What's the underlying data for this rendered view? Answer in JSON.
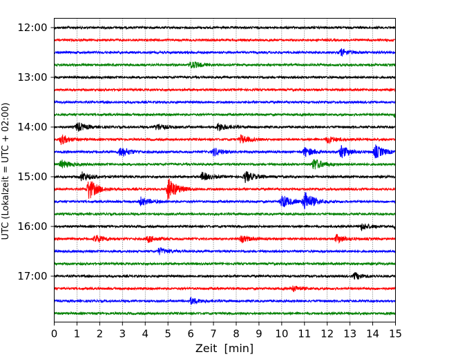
{
  "chart_data": {
    "type": "line",
    "subtype": "helicorder",
    "title": "",
    "xlabel": "Zeit  [min]",
    "ylabel": "UTC (Lokalzeit = UTC + 02:00)",
    "xlim": [
      0,
      15
    ],
    "x_ticks": [
      0,
      1,
      2,
      3,
      4,
      5,
      6,
      7,
      8,
      9,
      10,
      11,
      12,
      13,
      14,
      15
    ],
    "y_tick_labels": [
      "12:00",
      "13:00",
      "14:00",
      "15:00",
      "16:00",
      "17:00"
    ],
    "grid": "vertical dotted at each minute",
    "legend": "none",
    "trace_interval_min": 15,
    "colors": [
      "#000000",
      "#ff0000",
      "#0000ff",
      "#008000"
    ],
    "traces": [
      {
        "start": "12:00",
        "color": "#000000",
        "events": []
      },
      {
        "start": "12:15",
        "color": "#ff0000",
        "events": []
      },
      {
        "start": "12:30",
        "color": "#0000ff",
        "events": [
          {
            "t": 12.6,
            "amp": 5
          }
        ]
      },
      {
        "start": "12:45",
        "color": "#008000",
        "events": [
          {
            "t": 6.0,
            "amp": 6
          }
        ]
      },
      {
        "start": "13:00",
        "color": "#000000",
        "events": []
      },
      {
        "start": "13:15",
        "color": "#ff0000",
        "events": []
      },
      {
        "start": "13:30",
        "color": "#0000ff",
        "events": []
      },
      {
        "start": "13:45",
        "color": "#008000",
        "events": [
          {
            "t": 15.0,
            "amp": 6
          }
        ]
      },
      {
        "start": "14:00",
        "color": "#000000",
        "events": [
          {
            "t": 1.0,
            "amp": 7
          },
          {
            "t": 4.5,
            "amp": 5
          },
          {
            "t": 7.2,
            "amp": 6
          }
        ]
      },
      {
        "start": "14:15",
        "color": "#ff0000",
        "events": [
          {
            "t": 0.3,
            "amp": 7
          },
          {
            "t": 8.2,
            "amp": 6
          },
          {
            "t": 12.0,
            "amp": 5
          }
        ]
      },
      {
        "start": "14:30",
        "color": "#0000ff",
        "events": [
          {
            "t": 2.9,
            "amp": 8
          },
          {
            "t": 7.0,
            "amp": 6
          },
          {
            "t": 11.0,
            "amp": 7
          },
          {
            "t": 12.6,
            "amp": 9
          },
          {
            "t": 14.1,
            "amp": 10
          }
        ]
      },
      {
        "start": "14:45",
        "color": "#008000",
        "events": [
          {
            "t": 0.3,
            "amp": 6
          },
          {
            "t": 11.4,
            "amp": 9
          }
        ]
      },
      {
        "start": "15:00",
        "color": "#000000",
        "events": [
          {
            "t": 1.2,
            "amp": 7
          },
          {
            "t": 6.5,
            "amp": 6
          },
          {
            "t": 8.4,
            "amp": 8
          }
        ]
      },
      {
        "start": "15:15",
        "color": "#ff0000",
        "events": [
          {
            "t": 1.5,
            "amp": 16
          },
          {
            "t": 5.0,
            "amp": 17
          }
        ]
      },
      {
        "start": "15:30",
        "color": "#0000ff",
        "events": [
          {
            "t": 3.8,
            "amp": 6
          },
          {
            "t": 10.0,
            "amp": 10
          },
          {
            "t": 11.0,
            "amp": 15
          }
        ]
      },
      {
        "start": "15:45",
        "color": "#008000",
        "events": []
      },
      {
        "start": "16:00",
        "color": "#000000",
        "events": [
          {
            "t": 13.5,
            "amp": 5
          },
          {
            "t": 15.0,
            "amp": 6
          }
        ]
      },
      {
        "start": "16:15",
        "color": "#ff0000",
        "events": [
          {
            "t": 1.8,
            "amp": 6
          },
          {
            "t": 4.1,
            "amp": 5
          },
          {
            "t": 8.2,
            "amp": 5
          },
          {
            "t": 12.4,
            "amp": 6
          }
        ]
      },
      {
        "start": "16:30",
        "color": "#0000ff",
        "events": [
          {
            "t": 4.6,
            "amp": 5
          }
        ]
      },
      {
        "start": "16:45",
        "color": "#008000",
        "events": []
      },
      {
        "start": "17:00",
        "color": "#000000",
        "events": [
          {
            "t": 13.2,
            "amp": 5
          }
        ]
      },
      {
        "start": "17:15",
        "color": "#ff0000",
        "events": [
          {
            "t": 10.5,
            "amp": 4
          }
        ]
      },
      {
        "start": "17:30",
        "color": "#0000ff",
        "events": [
          {
            "t": 6.0,
            "amp": 5
          }
        ]
      },
      {
        "start": "17:45",
        "color": "#008000",
        "events": []
      }
    ]
  }
}
